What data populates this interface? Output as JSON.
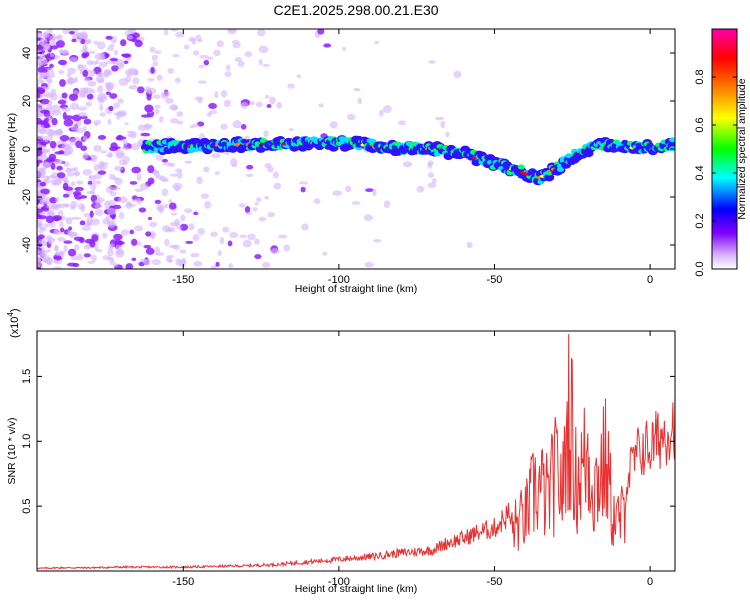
{
  "figure": {
    "title": "C2E1.2025.298.00.21.E30"
  },
  "chart_data": [
    {
      "type": "heatmap",
      "title": "C2E1.2025.298.00.21.E30",
      "xlabel": "Height of straight line (km)",
      "ylabel": "Frequency (Hz)",
      "xlim": [
        -197,
        8
      ],
      "ylim": [
        -50,
        50
      ],
      "xticks": [
        -150,
        -100,
        -50,
        0
      ],
      "xtick_labels": [
        "-150",
        "-100",
        "-50",
        "0"
      ],
      "yticks": [
        -40,
        -20,
        0,
        20,
        40
      ],
      "ytick_labels": [
        "-40",
        "-20",
        "0",
        "20",
        "40"
      ],
      "colorbar": {
        "label": "Normalized spectral amplitude",
        "ticks": [
          0.0,
          0.2,
          0.4,
          0.6,
          0.8
        ],
        "tick_labels": [
          "0.0",
          "0.2",
          "0.4",
          "0.6",
          "0.8"
        ],
        "range": [
          0,
          1
        ],
        "colormap": [
          "#ffffff",
          "#c080ff",
          "#8000ff",
          "#0000ff",
          "#00ffff",
          "#00ff00",
          "#ffff00",
          "#ff8000",
          "#ff0000",
          "#ff00aa"
        ]
      },
      "ridge": {
        "x": [
          -162,
          -150,
          -140,
          -130,
          -120,
          -110,
          -100,
          -90,
          -80,
          -70,
          -60,
          -50,
          -40,
          -35,
          -30,
          -25,
          -20,
          -15,
          -10,
          -5,
          0,
          8
        ],
        "y": [
          1,
          1,
          1.5,
          2,
          2,
          2.5,
          2.5,
          1.5,
          0.5,
          0,
          -2,
          -6,
          -10,
          -12,
          -8,
          -3,
          0,
          2,
          1,
          0.5,
          0.5,
          2
        ]
      }
    },
    {
      "type": "line",
      "xlabel": "Height of straight line (km)",
      "ylabel": "SNR (10 * v/v)",
      "y_multiplier": "(x10",
      "y_multiplier_exp": "4",
      "y_multiplier_close": ")",
      "xlim": [
        -197,
        8
      ],
      "ylim": [
        0,
        18500
      ],
      "xticks": [
        -150,
        -100,
        -50,
        0
      ],
      "xtick_labels": [
        "-150",
        "-100",
        "-50",
        "0"
      ],
      "yticks": [
        5000,
        10000,
        15000
      ],
      "ytick_labels": [
        "0.5",
        "1.0",
        "1.5"
      ],
      "series": [
        {
          "color": "#e83030",
          "x": [
            -197,
            -190,
            -180,
            -170,
            -160,
            -150,
            -140,
            -130,
            -120,
            -110,
            -100,
            -90,
            -80,
            -70,
            -65,
            -60,
            -55,
            -50,
            -45,
            -40,
            -37,
            -35,
            -33,
            -30,
            -28,
            -26,
            -24,
            -22,
            -20,
            -18,
            -16,
            -14,
            -12,
            -10,
            -8,
            -6,
            -4,
            -2,
            0,
            2,
            4,
            6,
            8
          ],
          "y": [
            200,
            250,
            250,
            300,
            300,
            300,
            350,
            400,
            500,
            700,
            900,
            1100,
            1400,
            1600,
            2200,
            2500,
            3000,
            3300,
            4500,
            6000,
            9000,
            9000,
            8000,
            11000,
            9000,
            18500,
            10000,
            11000,
            13000,
            9000,
            11000,
            12000,
            6000,
            5500,
            6500,
            8000,
            9000,
            9500,
            9500,
            10000,
            10500,
            11000,
            11500
          ]
        }
      ]
    }
  ]
}
